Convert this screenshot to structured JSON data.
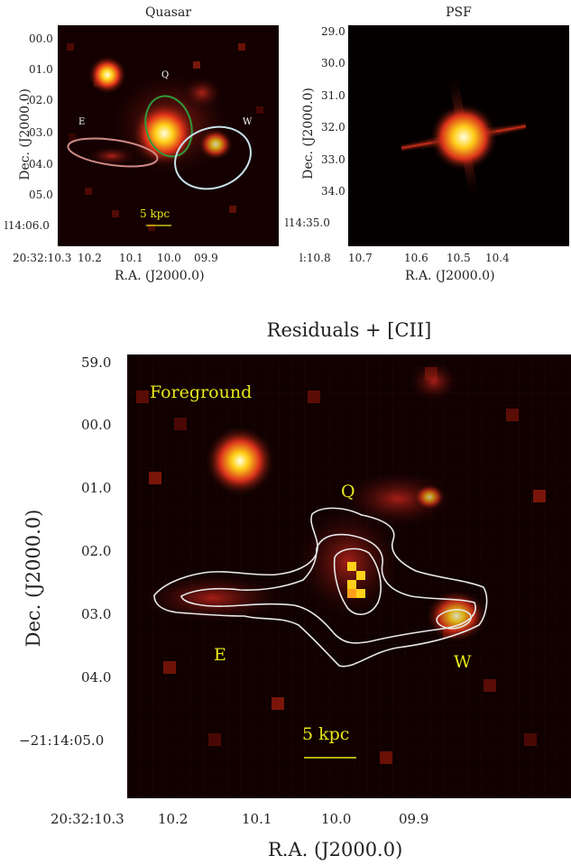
{
  "figure": {
    "quasar_panel": {
      "title": "Quasar",
      "y_ticks": [
        "00.0",
        "01.0",
        "02.0",
        "03.0",
        "04.0",
        "05.0",
        "l14:06.0"
      ],
      "x_ticks": [
        "20:32:10.3",
        "10.2",
        "10.1",
        "10.0",
        "09.9"
      ],
      "xlabel": "R.A. (J2000.0)",
      "ylabel": "Dec. (J2000.0)",
      "labels": {
        "q": "Q",
        "e": "E",
        "w": "W"
      },
      "scale_bar": "5 kpc",
      "ellipse_colors": {
        "q": "#2f9a3a",
        "e": "#d08a86",
        "w": "#c7e2ea"
      }
    },
    "psf_panel": {
      "title": "PSF",
      "y_ticks": [
        "29.0",
        "30.0",
        "31.0",
        "32.0",
        "33.0",
        "34.0",
        "l14:35.0"
      ],
      "x_ticks": [
        "l:10.8",
        "10.7",
        "10.6",
        "10.5",
        "10.4"
      ],
      "xlabel": "R.A. (J2000.0)",
      "ylabel": "Dec. (J2000.0)"
    },
    "residuals_panel": {
      "title": "Residuals + [CII]",
      "y_ticks": [
        "59.0",
        "00.0",
        "01.0",
        "02.0",
        "03.0",
        "04.0",
        "−21:14:05.0"
      ],
      "x_ticks": [
        "20:32:10.3",
        "10.2",
        "10.1",
        "10.0",
        "09.9"
      ],
      "xlabel": "R.A. (J2000.0)",
      "ylabel": "Dec. (J2000.0)",
      "labels": {
        "foreground": "Foreground",
        "q": "Q",
        "e": "E",
        "w": "W"
      },
      "scale_bar": "5 kpc",
      "contour_color": "#e8e8e8",
      "label_color": "#e8e81a"
    }
  }
}
